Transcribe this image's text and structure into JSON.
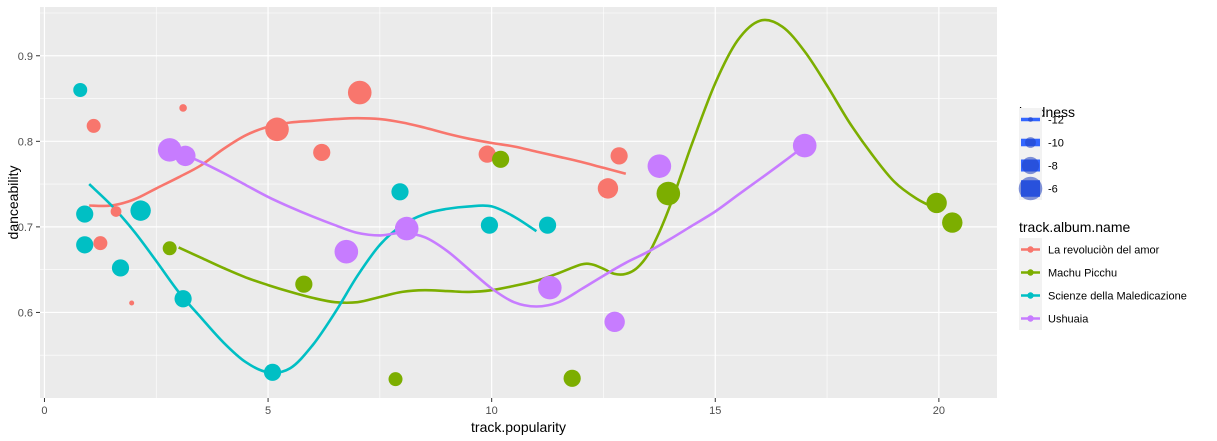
{
  "chart_data": {
    "type": "scatter",
    "title": "",
    "xlabel": "track.popularity",
    "ylabel": "danceability",
    "xlim": [
      -0.1,
      21.3
    ],
    "ylim": [
      0.5,
      0.957
    ],
    "x_ticks": [
      0,
      5,
      10,
      15,
      20
    ],
    "y_ticks": [
      0.6,
      0.7,
      0.8,
      0.9
    ],
    "x_tick_labels": [
      "0",
      "5",
      "10",
      "15",
      "20"
    ],
    "y_tick_labels": [
      "0.6",
      "0.7",
      "0.8",
      "0.9"
    ],
    "grid": true,
    "legend_position": "right",
    "size_legend": {
      "title": "loudness",
      "entries": [
        {
          "label": "-12",
          "value": -12
        },
        {
          "label": "-10",
          "value": -10
        },
        {
          "label": "-8",
          "value": -8
        },
        {
          "label": "-6",
          "value": -6
        }
      ]
    },
    "color_legend": {
      "title": "track.album.name"
    },
    "series": [
      {
        "name": "La revoluciòn del amor",
        "color": "#F8766D",
        "points": [
          {
            "x": 1.1,
            "y": 0.818,
            "loudness": -9
          },
          {
            "x": 1.25,
            "y": 0.681,
            "loudness": -9
          },
          {
            "x": 1.6,
            "y": 0.718,
            "loudness": -10
          },
          {
            "x": 1.95,
            "y": 0.611,
            "loudness": -14
          },
          {
            "x": 3.1,
            "y": 0.839,
            "loudness": -11
          },
          {
            "x": 5.2,
            "y": 0.814,
            "loudness": -6
          },
          {
            "x": 6.2,
            "y": 0.787,
            "loudness": -8
          },
          {
            "x": 7.05,
            "y": 0.857,
            "loudness": -6
          },
          {
            "x": 9.9,
            "y": 0.785,
            "loudness": -8
          },
          {
            "x": 12.6,
            "y": 0.745,
            "loudness": -7
          },
          {
            "x": 12.85,
            "y": 0.783,
            "loudness": -8
          }
        ],
        "smooth": [
          [
            1.0,
            0.725
          ],
          [
            1.5,
            0.725
          ],
          [
            2.0,
            0.732
          ],
          [
            2.5,
            0.745
          ],
          [
            3.0,
            0.758
          ],
          [
            3.5,
            0.772
          ],
          [
            4.0,
            0.791
          ],
          [
            4.5,
            0.807
          ],
          [
            5.0,
            0.817
          ],
          [
            5.5,
            0.822
          ],
          [
            6.0,
            0.824
          ],
          [
            6.5,
            0.826
          ],
          [
            7.0,
            0.827
          ],
          [
            7.5,
            0.826
          ],
          [
            8.0,
            0.822
          ],
          [
            8.5,
            0.816
          ],
          [
            9.0,
            0.809
          ],
          [
            9.5,
            0.803
          ],
          [
            10.0,
            0.798
          ],
          [
            10.5,
            0.794
          ],
          [
            11.0,
            0.788
          ],
          [
            11.5,
            0.782
          ],
          [
            12.0,
            0.776
          ],
          [
            12.5,
            0.769
          ],
          [
            13.0,
            0.762
          ]
        ]
      },
      {
        "name": "Machu Picchu",
        "color": "#7CAE00",
        "points": [
          {
            "x": 2.8,
            "y": 0.675,
            "loudness": -9
          },
          {
            "x": 5.8,
            "y": 0.633,
            "loudness": -8
          },
          {
            "x": 7.85,
            "y": 0.522,
            "loudness": -9
          },
          {
            "x": 10.2,
            "y": 0.779,
            "loudness": -8
          },
          {
            "x": 11.8,
            "y": 0.523,
            "loudness": -8
          },
          {
            "x": 13.95,
            "y": 0.739,
            "loudness": -6
          },
          {
            "x": 19.95,
            "y": 0.728,
            "loudness": -7
          },
          {
            "x": 20.3,
            "y": 0.705,
            "loudness": -7
          }
        ],
        "smooth": [
          [
            3.0,
            0.676
          ],
          [
            3.5,
            0.664
          ],
          [
            4.0,
            0.652
          ],
          [
            4.5,
            0.641
          ],
          [
            5.0,
            0.632
          ],
          [
            5.5,
            0.624
          ],
          [
            6.0,
            0.617
          ],
          [
            6.5,
            0.612
          ],
          [
            7.0,
            0.612
          ],
          [
            7.5,
            0.618
          ],
          [
            8.0,
            0.624
          ],
          [
            8.5,
            0.626
          ],
          [
            9.0,
            0.625
          ],
          [
            9.5,
            0.624
          ],
          [
            10.0,
            0.626
          ],
          [
            10.5,
            0.631
          ],
          [
            11.0,
            0.637
          ],
          [
            11.5,
            0.646
          ],
          [
            12.0,
            0.656
          ],
          [
            12.25,
            0.656
          ],
          [
            12.5,
            0.651
          ],
          [
            12.75,
            0.645
          ],
          [
            13.0,
            0.645
          ],
          [
            13.25,
            0.652
          ],
          [
            13.5,
            0.668
          ],
          [
            13.75,
            0.694
          ],
          [
            14.0,
            0.726
          ],
          [
            14.25,
            0.763
          ],
          [
            14.5,
            0.8
          ],
          [
            15.0,
            0.868
          ],
          [
            15.5,
            0.918
          ],
          [
            16.0,
            0.941
          ],
          [
            16.5,
            0.934
          ],
          [
            17.0,
            0.905
          ],
          [
            17.5,
            0.865
          ],
          [
            18.0,
            0.822
          ],
          [
            18.5,
            0.785
          ],
          [
            19.0,
            0.753
          ],
          [
            19.5,
            0.733
          ],
          [
            20.0,
            0.72
          ]
        ]
      },
      {
        "name": "Scienze della Maledicazione",
        "color": "#00BFC4",
        "points": [
          {
            "x": 0.8,
            "y": 0.86,
            "loudness": -9
          },
          {
            "x": 0.9,
            "y": 0.715,
            "loudness": -8
          },
          {
            "x": 0.9,
            "y": 0.679,
            "loudness": -8
          },
          {
            "x": 1.7,
            "y": 0.652,
            "loudness": -8
          },
          {
            "x": 2.15,
            "y": 0.719,
            "loudness": -7
          },
          {
            "x": 3.1,
            "y": 0.616,
            "loudness": -8
          },
          {
            "x": 5.1,
            "y": 0.53,
            "loudness": -8
          },
          {
            "x": 7.95,
            "y": 0.741,
            "loudness": -8
          },
          {
            "x": 9.95,
            "y": 0.702,
            "loudness": -8
          },
          {
            "x": 11.25,
            "y": 0.702,
            "loudness": -8
          }
        ],
        "smooth": [
          [
            1.0,
            0.75
          ],
          [
            1.5,
            0.725
          ],
          [
            2.0,
            0.695
          ],
          [
            2.5,
            0.66
          ],
          [
            3.0,
            0.624
          ],
          [
            3.5,
            0.594
          ],
          [
            4.0,
            0.565
          ],
          [
            4.5,
            0.542
          ],
          [
            5.0,
            0.53
          ],
          [
            5.5,
            0.535
          ],
          [
            6.0,
            0.562
          ],
          [
            6.5,
            0.6
          ],
          [
            7.0,
            0.643
          ],
          [
            7.5,
            0.679
          ],
          [
            8.0,
            0.702
          ],
          [
            8.5,
            0.715
          ],
          [
            9.0,
            0.721
          ],
          [
            9.5,
            0.724
          ],
          [
            10.0,
            0.724
          ],
          [
            10.5,
            0.712
          ],
          [
            11.0,
            0.695
          ]
        ]
      },
      {
        "name": "Ushuaia",
        "color": "#C77CFF",
        "points": [
          {
            "x": 2.8,
            "y": 0.79,
            "loudness": -6
          },
          {
            "x": 3.15,
            "y": 0.783,
            "loudness": -7
          },
          {
            "x": 6.75,
            "y": 0.671,
            "loudness": -6
          },
          {
            "x": 8.1,
            "y": 0.698,
            "loudness": -6
          },
          {
            "x": 11.3,
            "y": 0.629,
            "loudness": -6
          },
          {
            "x": 12.75,
            "y": 0.589,
            "loudness": -7
          },
          {
            "x": 13.75,
            "y": 0.771,
            "loudness": -6
          },
          {
            "x": 17.0,
            "y": 0.795,
            "loudness": -6
          }
        ],
        "smooth": [
          [
            3.0,
            0.787
          ],
          [
            3.5,
            0.776
          ],
          [
            4.0,
            0.763
          ],
          [
            4.5,
            0.749
          ],
          [
            5.0,
            0.735
          ],
          [
            5.5,
            0.723
          ],
          [
            6.0,
            0.712
          ],
          [
            6.5,
            0.702
          ],
          [
            7.0,
            0.693
          ],
          [
            7.5,
            0.69
          ],
          [
            8.0,
            0.693
          ],
          [
            8.5,
            0.688
          ],
          [
            9.0,
            0.672
          ],
          [
            9.5,
            0.65
          ],
          [
            10.0,
            0.628
          ],
          [
            10.5,
            0.612
          ],
          [
            11.0,
            0.607
          ],
          [
            11.5,
            0.612
          ],
          [
            12.0,
            0.627
          ],
          [
            12.5,
            0.643
          ],
          [
            13.0,
            0.658
          ],
          [
            13.5,
            0.671
          ],
          [
            14.0,
            0.686
          ],
          [
            14.5,
            0.702
          ],
          [
            15.0,
            0.718
          ],
          [
            15.5,
            0.737
          ],
          [
            16.0,
            0.756
          ],
          [
            16.5,
            0.775
          ],
          [
            17.0,
            0.795
          ]
        ]
      }
    ]
  }
}
